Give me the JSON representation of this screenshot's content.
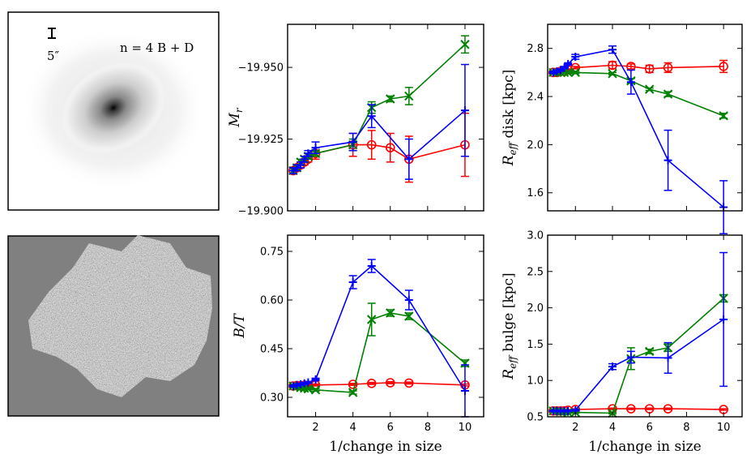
{
  "image_panels": {
    "galaxy": {
      "label": "n = 4 B + D",
      "scale_label": "5″"
    },
    "residual": {}
  },
  "chart_data": [
    {
      "id": "mr",
      "type": "line",
      "xlabel": "",
      "ylabel": "M_r",
      "ylabel_main": "M",
      "ylabel_sub": "r",
      "xlim": [
        0.5,
        11
      ],
      "ylim": [
        -19.9,
        -19.965
      ],
      "y_inverted": true,
      "xticks": [
        2,
        4,
        6,
        8,
        10
      ],
      "xtick_labels": [
        "",
        "",
        "",
        "",
        ""
      ],
      "yticks": [
        -19.9,
        -19.925,
        -19.95
      ],
      "ytick_labels": [
        "−19.900",
        "−19.925",
        "−19.950"
      ],
      "series": [
        {
          "name": "red",
          "color": "#ff0000",
          "marker": "circle",
          "x": [
            0.8,
            1.0,
            1.2,
            1.4,
            1.6,
            2.0,
            4.0,
            5.0,
            6.0,
            7.0,
            10.0
          ],
          "y": [
            -19.914,
            -19.915,
            -19.916,
            -19.917,
            -19.918,
            -19.92,
            -19.923,
            -19.923,
            -19.922,
            -19.918,
            -19.923
          ],
          "err": [
            0.001,
            0.001,
            0.001,
            0.001,
            0.001,
            0.002,
            0.004,
            0.005,
            0.005,
            0.008,
            0.011
          ]
        },
        {
          "name": "green",
          "color": "#008000",
          "marker": "x",
          "x": [
            0.8,
            1.0,
            1.2,
            1.4,
            1.6,
            2.0,
            4.0,
            5.0,
            6.0,
            7.0,
            10.0
          ],
          "y": [
            -19.914,
            -19.915,
            -19.917,
            -19.918,
            -19.919,
            -19.92,
            -19.923,
            -19.936,
            -19.939,
            -19.94,
            -19.958
          ],
          "err": [
            0.001,
            0.001,
            0.001,
            0.001,
            0.001,
            0.001,
            0.002,
            0.002,
            0.001,
            0.003,
            0.003
          ]
        },
        {
          "name": "blue",
          "color": "#0000ff",
          "marker": "plus",
          "x": [
            0.8,
            1.0,
            1.2,
            1.4,
            1.6,
            2.0,
            4.0,
            5.0,
            6.0,
            7.0,
            10.0
          ],
          "y": [
            -19.914,
            -19.915,
            -19.916,
            -19.918,
            -19.92,
            -19.922,
            -19.924,
            -19.933,
            null,
            -19.918,
            -19.935
          ],
          "err": [
            0.001,
            0.001,
            0.001,
            0.001,
            0.001,
            0.002,
            0.003,
            0.004,
            null,
            0.007,
            0.016
          ]
        }
      ]
    },
    {
      "id": "reff_disk",
      "type": "line",
      "xlabel": "",
      "ylabel": "R_eff disk [kpc]",
      "ylabel_main": "R",
      "ylabel_sub": "eff",
      "ylabel_rest": " disk [kpc]",
      "xlim": [
        0.5,
        11
      ],
      "ylim": [
        1.45,
        3.0
      ],
      "xticks": [
        2,
        4,
        6,
        8,
        10
      ],
      "xtick_labels": [
        "",
        "",
        "",
        "",
        ""
      ],
      "yticks": [
        1.6,
        2.0,
        2.4,
        2.8
      ],
      "ytick_labels": [
        "1.6",
        "2.0",
        "2.4",
        "2.8"
      ],
      "series": [
        {
          "name": "red",
          "color": "#ff0000",
          "marker": "circle",
          "x": [
            0.8,
            1.0,
            1.2,
            1.4,
            1.6,
            2.0,
            4.0,
            5.0,
            6.0,
            7.0,
            10.0
          ],
          "y": [
            2.6,
            2.6,
            2.61,
            2.61,
            2.62,
            2.64,
            2.66,
            2.65,
            2.63,
            2.64,
            2.65
          ],
          "err": [
            0.01,
            0.01,
            0.01,
            0.01,
            0.01,
            0.01,
            0.03,
            0.02,
            0.03,
            0.04,
            0.05
          ]
        },
        {
          "name": "green",
          "color": "#008000",
          "marker": "x",
          "x": [
            0.8,
            1.0,
            1.2,
            1.4,
            1.6,
            2.0,
            4.0,
            5.0,
            6.0,
            7.0,
            10.0
          ],
          "y": [
            2.6,
            2.6,
            2.6,
            2.6,
            2.6,
            2.6,
            2.59,
            2.53,
            2.46,
            2.42,
            2.24
          ],
          "err": [
            0.01,
            0.01,
            0.01,
            0.01,
            0.01,
            0.01,
            0.01,
            0.02,
            0.01,
            0.02,
            0.02
          ]
        },
        {
          "name": "blue",
          "color": "#0000ff",
          "marker": "plus",
          "x": [
            0.8,
            1.0,
            1.2,
            1.4,
            1.6,
            2.0,
            4.0,
            5.0,
            6.0,
            7.0,
            10.0
          ],
          "y": [
            2.6,
            2.61,
            2.62,
            2.64,
            2.67,
            2.73,
            2.79,
            2.52,
            null,
            1.87,
            1.48
          ],
          "err": [
            0.01,
            0.01,
            0.01,
            0.01,
            0.01,
            0.02,
            0.03,
            0.1,
            null,
            0.25,
            0.22
          ]
        }
      ]
    },
    {
      "id": "bt",
      "type": "line",
      "xlabel": "1/change in size",
      "ylabel": "B/T",
      "ylabel_main": "B/T",
      "xlim": [
        0.5,
        11
      ],
      "ylim": [
        0.24,
        0.8
      ],
      "xticks": [
        2,
        4,
        6,
        8,
        10
      ],
      "xtick_labels": [
        "2",
        "4",
        "6",
        "8",
        "10"
      ],
      "yticks": [
        0.3,
        0.45,
        0.6,
        0.75
      ],
      "ytick_labels": [
        "0.30",
        "0.45",
        "0.60",
        "0.75"
      ],
      "series": [
        {
          "name": "red",
          "color": "#ff0000",
          "marker": "circle",
          "x": [
            0.8,
            1.0,
            1.2,
            1.4,
            1.6,
            2.0,
            4.0,
            5.0,
            6.0,
            7.0,
            10.0
          ],
          "y": [
            0.335,
            0.336,
            0.336,
            0.337,
            0.337,
            0.338,
            0.34,
            0.343,
            0.345,
            0.344,
            0.338
          ],
          "err": [
            0.003,
            0.003,
            0.003,
            0.003,
            0.003,
            0.003,
            0.003,
            0.003,
            0.003,
            0.003,
            0.003
          ]
        },
        {
          "name": "green",
          "color": "#008000",
          "marker": "x",
          "x": [
            0.8,
            1.0,
            1.2,
            1.4,
            1.6,
            2.0,
            4.0,
            5.0,
            6.0,
            7.0,
            10.0
          ],
          "y": [
            0.335,
            0.333,
            0.33,
            0.328,
            0.326,
            0.323,
            0.315,
            0.54,
            0.56,
            0.55,
            0.405
          ],
          "err": [
            0.003,
            0.003,
            0.003,
            0.003,
            0.003,
            0.004,
            0.005,
            0.05,
            0.01,
            0.01,
            0.01
          ]
        },
        {
          "name": "blue",
          "color": "#0000ff",
          "marker": "plus",
          "x": [
            0.8,
            1.0,
            1.2,
            1.4,
            1.6,
            2.0,
            4.0,
            5.0,
            6.0,
            7.0,
            10.0
          ],
          "y": [
            0.335,
            0.338,
            0.34,
            0.343,
            0.346,
            0.355,
            0.655,
            0.705,
            null,
            0.6,
            0.32
          ],
          "err": [
            0.003,
            0.003,
            0.003,
            0.003,
            0.003,
            0.004,
            0.02,
            0.02,
            null,
            0.03,
            0.08
          ]
        }
      ]
    },
    {
      "id": "reff_bulge",
      "type": "line",
      "xlabel": "1/change in size",
      "ylabel": "R_eff bulge [kpc]",
      "ylabel_main": "R",
      "ylabel_sub": "eff",
      "ylabel_rest": " bulge [kpc]",
      "xlim": [
        0.5,
        11
      ],
      "ylim": [
        0.5,
        3.0
      ],
      "xticks": [
        2,
        4,
        6,
        8,
        10
      ],
      "xtick_labels": [
        "2",
        "4",
        "6",
        "8",
        "10"
      ],
      "yticks": [
        0.5,
        1.0,
        1.5,
        2.0,
        2.5,
        3.0
      ],
      "ytick_labels": [
        "0.5",
        "1.0",
        "1.5",
        "2.0",
        "2.5",
        "3.0"
      ],
      "series": [
        {
          "name": "red",
          "color": "#ff0000",
          "marker": "circle",
          "x": [
            0.8,
            1.0,
            1.2,
            1.4,
            1.6,
            2.0,
            4.0,
            5.0,
            6.0,
            7.0,
            10.0
          ],
          "y": [
            0.58,
            0.58,
            0.58,
            0.58,
            0.59,
            0.6,
            0.61,
            0.61,
            0.61,
            0.61,
            0.6
          ],
          "err": [
            0.01,
            0.01,
            0.01,
            0.01,
            0.01,
            0.01,
            0.01,
            0.01,
            0.01,
            0.01,
            0.01
          ]
        },
        {
          "name": "green",
          "color": "#008000",
          "marker": "x",
          "x": [
            0.8,
            1.0,
            1.2,
            1.4,
            1.6,
            2.0,
            4.0,
            5.0,
            6.0,
            7.0,
            10.0
          ],
          "y": [
            0.58,
            0.58,
            0.57,
            0.57,
            0.56,
            0.56,
            0.55,
            1.3,
            1.4,
            1.45,
            2.13
          ],
          "err": [
            0.01,
            0.01,
            0.01,
            0.01,
            0.01,
            0.01,
            0.01,
            0.15,
            0.03,
            0.05,
            0.05
          ]
        },
        {
          "name": "blue",
          "color": "#0000ff",
          "marker": "plus",
          "x": [
            0.8,
            1.0,
            1.2,
            1.4,
            1.6,
            2.0,
            4.0,
            5.0,
            6.0,
            7.0,
            10.0
          ],
          "y": [
            0.58,
            0.58,
            0.58,
            0.58,
            0.58,
            0.59,
            1.19,
            1.32,
            null,
            1.31,
            1.84
          ],
          "err": [
            0.01,
            0.01,
            0.01,
            0.01,
            0.01,
            0.01,
            0.04,
            0.08,
            null,
            0.21,
            0.92
          ]
        }
      ]
    }
  ]
}
